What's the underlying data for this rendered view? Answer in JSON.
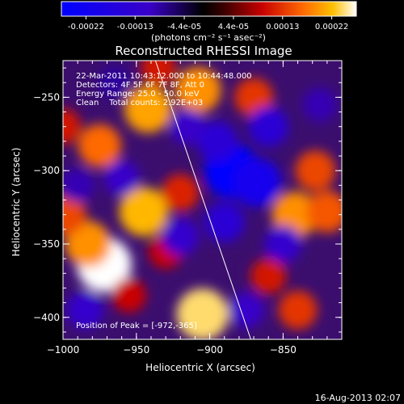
{
  "colorbar": {
    "ticks": [
      "-0.00022",
      "-0.00013",
      "-4.4e-05",
      "4.4e-05",
      "0.00013",
      "0.00022"
    ],
    "units": "(photons cm⁻² s⁻¹ asec⁻²)"
  },
  "chart_data": {
    "type": "heatmap",
    "title": "Reconstructed RHESSI Image",
    "xlabel": "Heliocentric X (arcsec)",
    "ylabel": "Heliocentric Y (arcsec)",
    "xlim": [
      -1000,
      -810
    ],
    "ylim": [
      -415,
      -225
    ],
    "x_ticks": [
      -1000,
      -950,
      -900,
      -850
    ],
    "y_ticks": [
      -250,
      -300,
      -350,
      -400
    ],
    "x_tick_labels": [
      "−1000",
      "−950",
      "−900",
      "−850"
    ],
    "y_tick_labels": [
      "−250",
      "−300",
      "−350",
      "−400"
    ],
    "color_range": [
      -0.00022,
      0.00022
    ],
    "annotations": [
      "22-Mar-2011 10:43:12.000 to 10:44:48.000",
      "Detectors: 4F 5F 6F 7F 8F, Att 0",
      "Energy Range: 25.0 - 50.0 keV",
      "Clean    Total counts: 2.92E+03"
    ],
    "peak_text": "Position of Peak = [-972,-365]",
    "limb_line": [
      [
        -937,
        -225
      ],
      [
        -872,
        -415
      ]
    ],
    "blobs": [
      {
        "x": -972,
        "y": -364,
        "v": 0.00022
      },
      {
        "x": -983,
        "y": -350,
        "v": 0.00016
      },
      {
        "x": -945,
        "y": -328,
        "v": 0.00018
      },
      {
        "x": -905,
        "y": -398,
        "v": 0.0002
      },
      {
        "x": -942,
        "y": -258,
        "v": 0.00017
      },
      {
        "x": -908,
        "y": -245,
        "v": 0.00016
      },
      {
        "x": -975,
        "y": -283,
        "v": 0.00014
      },
      {
        "x": -998,
        "y": -330,
        "v": 0.00012
      },
      {
        "x": -842,
        "y": -330,
        "v": 0.00016
      },
      {
        "x": -820,
        "y": -328,
        "v": 0.00013
      },
      {
        "x": -870,
        "y": -250,
        "v": 0.00011
      },
      {
        "x": -828,
        "y": -300,
        "v": 0.00012
      },
      {
        "x": -840,
        "y": -395,
        "v": 0.00011
      },
      {
        "x": -920,
        "y": -315,
        "v": 0.0001
      },
      {
        "x": -1000,
        "y": -270,
        "v": 9e-05
      },
      {
        "x": -955,
        "y": -385,
        "v": 8e-05
      },
      {
        "x": -860,
        "y": -372,
        "v": 9e-05
      },
      {
        "x": -930,
        "y": -355,
        "v": 8e-05
      },
      {
        "x": -935,
        "y": -230,
        "v": 9e-05
      },
      {
        "x": -885,
        "y": -300,
        "v": -0.00022
      },
      {
        "x": -868,
        "y": -308,
        "v": -0.00018
      },
      {
        "x": -895,
        "y": -280,
        "v": -0.00012
      },
      {
        "x": -890,
        "y": -335,
        "v": -0.00012
      },
      {
        "x": -860,
        "y": -270,
        "v": -0.00012
      },
      {
        "x": -920,
        "y": -345,
        "v": -0.0001
      },
      {
        "x": -985,
        "y": -395,
        "v": -0.0001
      },
      {
        "x": -960,
        "y": -305,
        "v": -9e-05
      },
      {
        "x": -915,
        "y": -270,
        "v": -9e-05
      },
      {
        "x": -850,
        "y": -350,
        "v": -0.0001
      },
      {
        "x": -875,
        "y": -395,
        "v": -9e-05
      },
      {
        "x": -990,
        "y": -310,
        "v": -8e-05
      },
      {
        "x": -825,
        "y": -255,
        "v": -8e-05
      },
      {
        "x": -965,
        "y": -240,
        "v": -7e-05
      }
    ]
  },
  "footer": {
    "date": "16-Aug-2013 02:07"
  }
}
